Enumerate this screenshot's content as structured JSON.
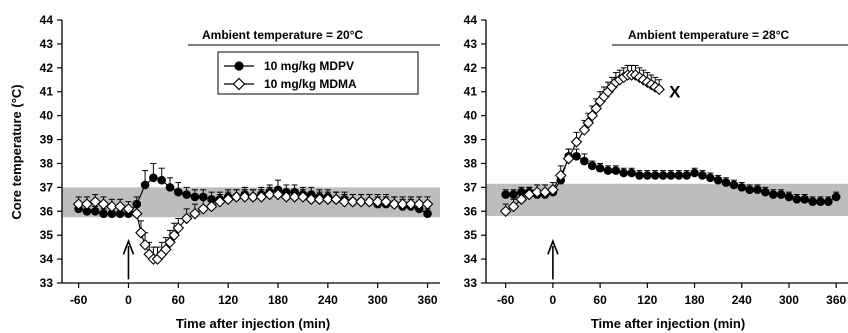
{
  "chart_data": {
    "type": "line",
    "shared_y_axis_label": "Core temperature (°C)",
    "legend": [
      {
        "name": "10 mg/kg MDPV",
        "marker": "filled-circle"
      },
      {
        "name": "10 mg/kg MDMA",
        "marker": "open-diamond"
      }
    ],
    "colors": {
      "line": "#000000",
      "band": "#bdbdbd"
    },
    "panels": [
      {
        "id": "left",
        "annotation": "Ambient temperature = 20°C",
        "xlabel": "Time after injection (min)",
        "ylabel": "Core temperature (°C)",
        "x_ticks": [
          -60,
          0,
          60,
          120,
          180,
          240,
          300,
          360
        ],
        "y_ticks": [
          33,
          34,
          35,
          36,
          37,
          38,
          39,
          40,
          41,
          42,
          43,
          44
        ],
        "xlim": [
          -80,
          375
        ],
        "ylim": [
          33,
          44
        ],
        "normal_band": [
          35.75,
          37.0
        ],
        "arrow_at_x": 0,
        "legend_position": "top-center",
        "series": [
          {
            "name": "10 mg/kg MDPV",
            "marker": "filled-circle",
            "x": [
              -60,
              -50,
              -40,
              -30,
              -20,
              -10,
              0,
              10,
              20,
              30,
              40,
              50,
              60,
              70,
              80,
              90,
              100,
              110,
              120,
              130,
              140,
              150,
              160,
              170,
              180,
              190,
              200,
              210,
              220,
              230,
              240,
              250,
              260,
              270,
              280,
              290,
              300,
              310,
              320,
              330,
              340,
              350,
              360
            ],
            "y": [
              36.1,
              36.0,
              36.0,
              35.9,
              35.9,
              35.9,
              35.9,
              36.3,
              37.1,
              37.4,
              37.3,
              37.0,
              36.8,
              36.7,
              36.6,
              36.6,
              36.5,
              36.5,
              36.6,
              36.6,
              36.7,
              36.6,
              36.7,
              36.8,
              36.9,
              36.8,
              36.8,
              36.7,
              36.7,
              36.6,
              36.6,
              36.5,
              36.5,
              36.4,
              36.4,
              36.4,
              36.3,
              36.3,
              36.3,
              36.2,
              36.2,
              36.1,
              35.9
            ],
            "error": [
              0.2,
              0.2,
              0.2,
              0.2,
              0.2,
              0.2,
              0.2,
              0.3,
              0.6,
              0.6,
              0.5,
              0.4,
              0.4,
              0.3,
              0.3,
              0.3,
              0.3,
              0.3,
              0.3,
              0.3,
              0.3,
              0.3,
              0.3,
              0.3,
              0.4,
              0.3,
              0.3,
              0.3,
              0.3,
              0.3,
              0.3,
              0.3,
              0.3,
              0.3,
              0.3,
              0.3,
              0.3,
              0.3,
              0.3,
              0.3,
              0.3,
              0.3,
              0.2
            ]
          },
          {
            "name": "10 mg/kg MDMA",
            "marker": "open-diamond",
            "x": [
              -60,
              -50,
              -40,
              -30,
              -20,
              -10,
              0,
              10,
              15,
              20,
              25,
              30,
              35,
              40,
              45,
              50,
              55,
              60,
              70,
              80,
              90,
              100,
              110,
              120,
              130,
              140,
              150,
              160,
              170,
              180,
              190,
              200,
              210,
              220,
              230,
              240,
              250,
              260,
              270,
              280,
              290,
              300,
              310,
              320,
              330,
              340,
              350,
              360
            ],
            "y": [
              36.3,
              36.3,
              36.4,
              36.3,
              36.2,
              36.2,
              36.1,
              35.9,
              35.1,
              34.6,
              34.2,
              34.0,
              34.0,
              34.2,
              34.4,
              34.7,
              35.0,
              35.3,
              35.7,
              35.9,
              36.1,
              36.2,
              36.4,
              36.5,
              36.6,
              36.6,
              36.6,
              36.6,
              36.7,
              36.7,
              36.6,
              36.6,
              36.6,
              36.5,
              36.5,
              36.5,
              36.5,
              36.4,
              36.4,
              36.4,
              36.4,
              36.4,
              36.4,
              36.3,
              36.3,
              36.3,
              36.3,
              36.3
            ],
            "error": [
              0.3,
              0.3,
              0.3,
              0.3,
              0.3,
              0.3,
              0.3,
              0.4,
              0.5,
              0.5,
              0.5,
              0.5,
              0.5,
              0.5,
              0.5,
              0.5,
              0.5,
              0.4,
              0.4,
              0.4,
              0.4,
              0.4,
              0.3,
              0.3,
              0.3,
              0.3,
              0.3,
              0.3,
              0.3,
              0.3,
              0.3,
              0.3,
              0.3,
              0.3,
              0.3,
              0.3,
              0.3,
              0.3,
              0.3,
              0.3,
              0.3,
              0.3,
              0.3,
              0.3,
              0.3,
              0.3,
              0.3,
              0.3
            ]
          }
        ]
      },
      {
        "id": "right",
        "annotation": "Ambient temperature = 28°C",
        "xlabel": "Time after injection (min)",
        "ylabel": "",
        "x_ticks": [
          -60,
          0,
          60,
          120,
          180,
          240,
          300,
          360
        ],
        "y_ticks": [
          33,
          34,
          35,
          36,
          37,
          38,
          39,
          40,
          41,
          42,
          43,
          44
        ],
        "xlim": [
          -85,
          375
        ],
        "ylim": [
          33,
          44
        ],
        "normal_band": [
          35.8,
          37.15
        ],
        "arrow_at_x": 0,
        "end_marker": {
          "text": "X",
          "x": 140,
          "y": 41.0
        },
        "series": [
          {
            "name": "10 mg/kg MDPV",
            "marker": "filled-circle",
            "x": [
              -60,
              -50,
              -40,
              -30,
              -20,
              -10,
              0,
              10,
              20,
              30,
              40,
              50,
              60,
              70,
              80,
              90,
              100,
              110,
              120,
              130,
              140,
              150,
              160,
              170,
              180,
              190,
              200,
              210,
              220,
              230,
              240,
              250,
              260,
              270,
              280,
              290,
              300,
              310,
              320,
              330,
              340,
              350,
              360
            ],
            "y": [
              36.7,
              36.7,
              36.8,
              36.8,
              36.7,
              36.7,
              36.8,
              37.3,
              38.3,
              38.3,
              38.1,
              37.9,
              37.8,
              37.7,
              37.7,
              37.6,
              37.6,
              37.5,
              37.5,
              37.5,
              37.5,
              37.5,
              37.5,
              37.5,
              37.6,
              37.5,
              37.4,
              37.3,
              37.2,
              37.1,
              37.0,
              36.9,
              36.9,
              36.8,
              36.7,
              36.7,
              36.6,
              36.5,
              36.5,
              36.4,
              36.4,
              36.4,
              36.6
            ],
            "error": [
              0.2,
              0.2,
              0.2,
              0.2,
              0.2,
              0.2,
              0.2,
              0.3,
              0.3,
              0.3,
              0.3,
              0.2,
              0.2,
              0.2,
              0.2,
              0.2,
              0.2,
              0.2,
              0.2,
              0.2,
              0.2,
              0.2,
              0.2,
              0.2,
              0.2,
              0.2,
              0.2,
              0.2,
              0.2,
              0.2,
              0.2,
              0.2,
              0.2,
              0.2,
              0.2,
              0.2,
              0.2,
              0.2,
              0.2,
              0.2,
              0.2,
              0.2,
              0.2
            ]
          },
          {
            "name": "10 mg/kg MDMA",
            "marker": "open-diamond",
            "x": [
              -60,
              -50,
              -40,
              -30,
              -20,
              -10,
              0,
              10,
              20,
              30,
              40,
              45,
              50,
              55,
              60,
              65,
              70,
              75,
              80,
              85,
              90,
              95,
              100,
              105,
              110,
              115,
              120,
              125,
              130,
              135
            ],
            "y": [
              36.0,
              36.2,
              36.5,
              36.7,
              36.8,
              36.8,
              36.9,
              37.5,
              38.2,
              38.9,
              39.4,
              39.7,
              40.0,
              40.3,
              40.6,
              40.8,
              41.0,
              41.2,
              41.4,
              41.5,
              41.6,
              41.7,
              41.7,
              41.7,
              41.6,
              41.5,
              41.4,
              41.3,
              41.2,
              41.1
            ],
            "error": [
              0.3,
              0.3,
              0.3,
              0.3,
              0.3,
              0.3,
              0.3,
              0.4,
              0.4,
              0.4,
              0.4,
              0.4,
              0.4,
              0.4,
              0.4,
              0.4,
              0.4,
              0.4,
              0.4,
              0.4,
              0.4,
              0.4,
              0.4,
              0.4,
              0.4,
              0.4,
              0.4,
              0.4,
              0.4,
              0.4
            ]
          }
        ]
      }
    ]
  }
}
